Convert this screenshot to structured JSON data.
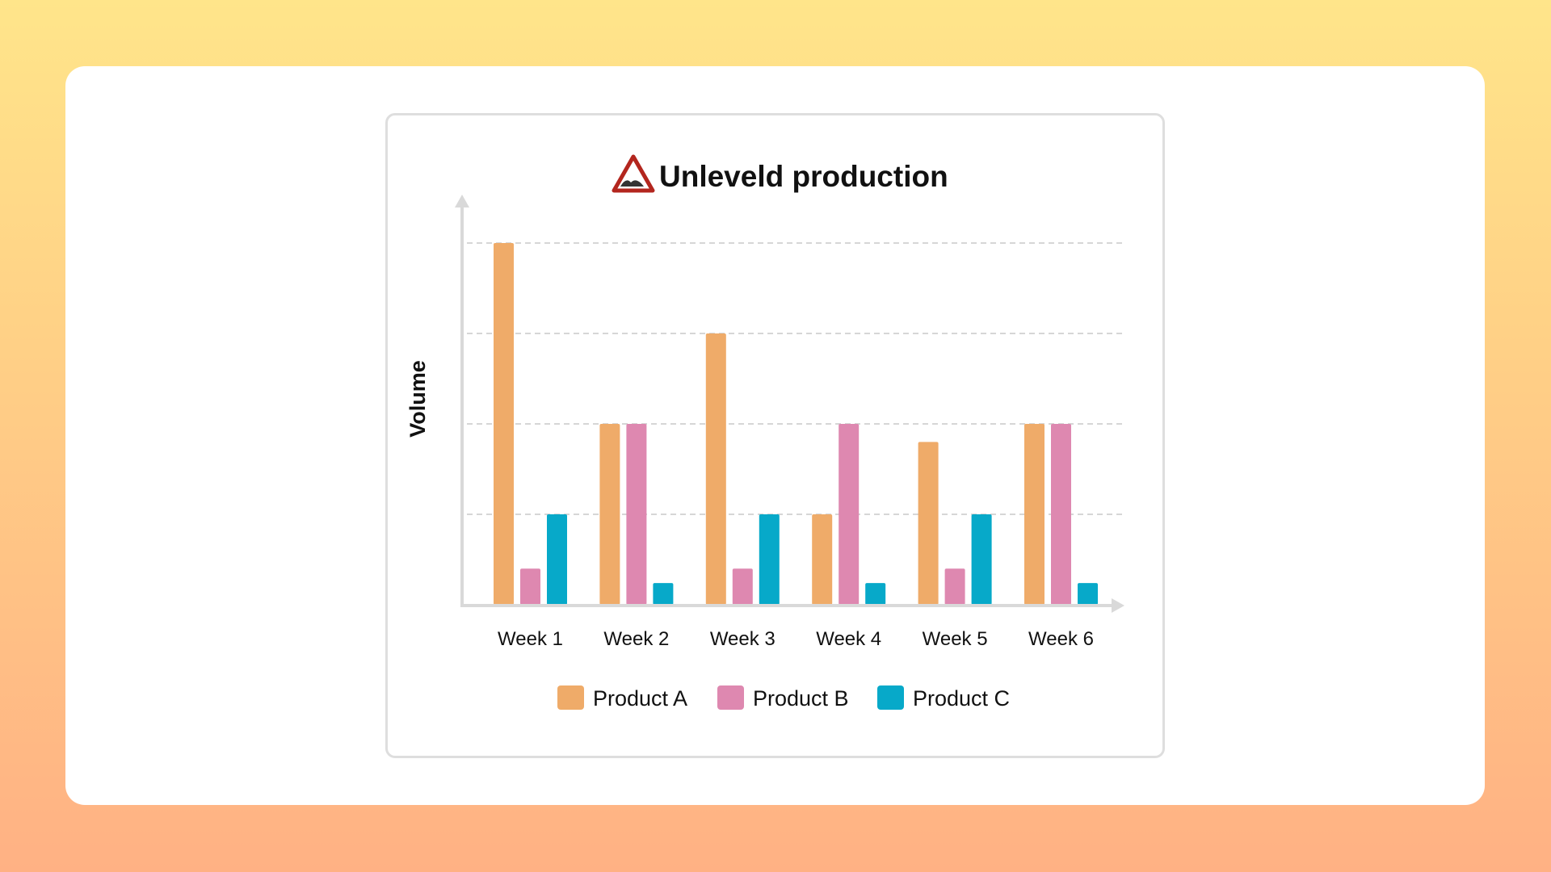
{
  "chart_data": {
    "type": "bar",
    "title": "Unleveld production",
    "title_icon": "uneven-road-warning-icon",
    "ylabel": "Volume",
    "xlabel": "",
    "categories": [
      "Week 1",
      "Week 2",
      "Week 3",
      "Week 4",
      "Week 5",
      "Week 6"
    ],
    "series": [
      {
        "name": "Product A",
        "color": "#efab69",
        "values": [
          100,
          50,
          75,
          25,
          45,
          50
        ]
      },
      {
        "name": "Product B",
        "color": "#de88b0",
        "values": [
          10,
          50,
          10,
          50,
          10,
          50
        ]
      },
      {
        "name": "Product C",
        "color": "#07a9c9",
        "values": [
          25,
          6,
          25,
          6,
          25,
          6
        ]
      }
    ],
    "ylim": [
      0,
      100
    ],
    "gridlines": [
      25,
      50,
      75,
      100
    ],
    "y_tick_labels": false,
    "grid": true,
    "legend_position": "bottom"
  }
}
